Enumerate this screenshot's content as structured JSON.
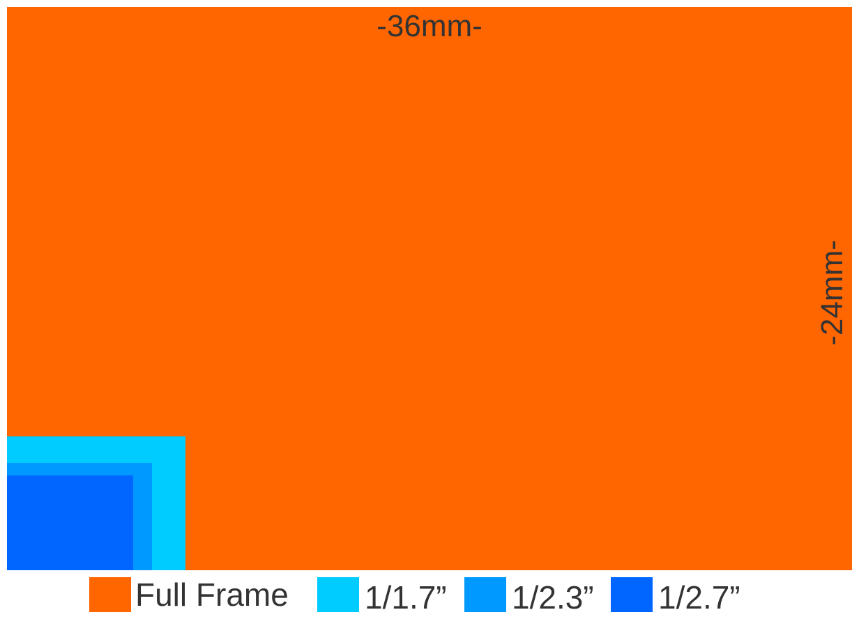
{
  "labels": {
    "width": "-36mm-",
    "height": "-24mm-"
  },
  "sensors": [
    {
      "id": "full",
      "label": "Full Frame",
      "color": "#FF6600"
    },
    {
      "id": "17",
      "label": "1/1.7”",
      "color": "#00CCFF"
    },
    {
      "id": "23",
      "label": "1/2.3”",
      "color": "#0099FF"
    },
    {
      "id": "27",
      "label": "1/2.7”",
      "color": "#0066FF"
    }
  ]
}
